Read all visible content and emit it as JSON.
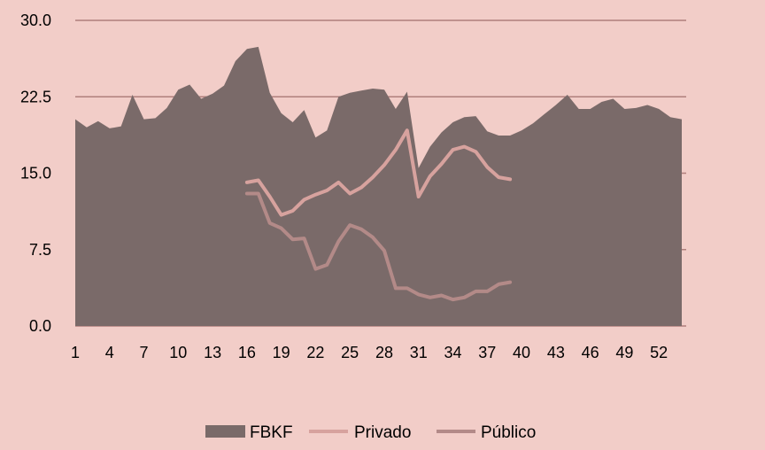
{
  "chart_data": {
    "type": "area",
    "title": "",
    "xlabel": "",
    "ylabel": "",
    "xlim": [
      1,
      54
    ],
    "ylim": [
      0,
      30
    ],
    "y_ticks": [
      "0.0",
      "7.5",
      "15.0",
      "22.5",
      "30.0"
    ],
    "x_ticks": [
      "1",
      "4",
      "7",
      "10",
      "13",
      "16",
      "19",
      "22",
      "25",
      "28",
      "31",
      "34",
      "37",
      "40",
      "43",
      "46",
      "49",
      "52"
    ],
    "grid": true,
    "legend_position": "bottom",
    "series": [
      {
        "name": "FBKF",
        "kind": "area",
        "color": "#7a6a69",
        "x": [
          1,
          2,
          3,
          4,
          5,
          6,
          7,
          8,
          9,
          10,
          11,
          12,
          13,
          14,
          15,
          16,
          17,
          18,
          19,
          20,
          21,
          22,
          23,
          24,
          25,
          26,
          27,
          28,
          29,
          30,
          31,
          32,
          33,
          34,
          35,
          36,
          37,
          38,
          39,
          40,
          41,
          42,
          43,
          44,
          45,
          46,
          47,
          48,
          49,
          50,
          51,
          52,
          53,
          54
        ],
        "values": [
          20.3,
          19.5,
          20.1,
          19.4,
          19.6,
          22.7,
          20.3,
          20.4,
          21.4,
          23.2,
          23.7,
          22.3,
          22.8,
          23.6,
          26.0,
          27.2,
          27.4,
          22.9,
          20.9,
          20.0,
          21.2,
          18.5,
          19.2,
          22.5,
          22.9,
          23.1,
          23.3,
          23.2,
          21.3,
          23.0,
          15.5,
          17.6,
          19.0,
          20.0,
          20.5,
          20.6,
          19.1,
          18.7,
          18.7,
          19.2,
          19.9,
          20.8,
          21.7,
          22.7,
          21.3,
          21.3,
          22.0,
          22.3,
          21.3,
          21.4,
          21.7,
          21.3,
          20.5,
          20.3
        ]
      },
      {
        "name": "Privado",
        "kind": "line",
        "color": "#d7a29e",
        "x": [
          16,
          17,
          18,
          19,
          20,
          21,
          22,
          23,
          24,
          25,
          26,
          27,
          28,
          29,
          30,
          31,
          32,
          33,
          34,
          35,
          36,
          37,
          38,
          39
        ],
        "values": [
          14.1,
          14.3,
          12.7,
          10.9,
          11.3,
          12.4,
          12.9,
          13.3,
          14.1,
          13.0,
          13.6,
          14.6,
          15.8,
          17.3,
          19.2,
          12.7,
          14.7,
          15.9,
          17.3,
          17.6,
          17.1,
          15.6,
          14.6,
          14.4
        ]
      },
      {
        "name": "Público",
        "kind": "line",
        "color": "#b38a88",
        "x": [
          16,
          17,
          18,
          19,
          20,
          21,
          22,
          23,
          24,
          25,
          26,
          27,
          28,
          29,
          30,
          31,
          32,
          33,
          34,
          35,
          36,
          37,
          38,
          39
        ],
        "values": [
          13.0,
          13.0,
          10.1,
          9.6,
          8.5,
          8.6,
          5.6,
          6.0,
          8.3,
          9.9,
          9.5,
          8.7,
          7.4,
          3.7,
          3.7,
          3.1,
          2.8,
          3.0,
          2.6,
          2.8,
          3.4,
          3.4,
          4.1,
          4.3
        ]
      }
    ]
  }
}
